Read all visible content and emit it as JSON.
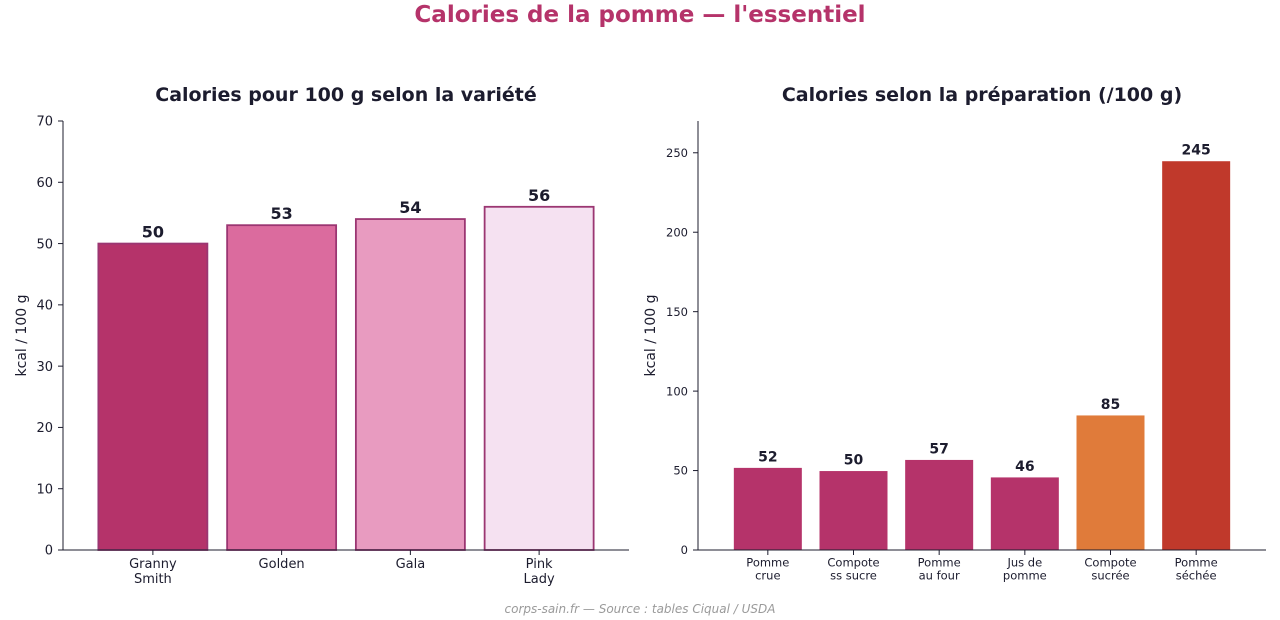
{
  "title": "Calories de la pomme — l'essentiel",
  "footer": "corps-sain.fr — Source : tables Ciqual / USDA",
  "chart_data": [
    {
      "type": "bar",
      "title": "Calories pour 100 g selon la variété",
      "ylabel": "kcal / 100 g",
      "xlabel": "",
      "ylim": [
        0,
        70
      ],
      "yticks": [
        0,
        10,
        20,
        30,
        40,
        50,
        60,
        70
      ],
      "categories": [
        [
          "Granny",
          "Smith"
        ],
        [
          "Golden"
        ],
        [
          "Gala"
        ],
        [
          "Pink",
          "Lady"
        ]
      ],
      "values": [
        50,
        53,
        54,
        56
      ],
      "colors": [
        "#b5336a",
        "#db6b9e",
        "#e89bc0",
        "#f5e1f1"
      ],
      "edge_color": "#9b3672",
      "grid": false
    },
    {
      "type": "bar",
      "title": "Calories selon la préparation (/100 g)",
      "ylabel": "kcal / 100 g",
      "xlabel": "",
      "ylim": [
        0,
        270
      ],
      "yticks": [
        0,
        50,
        100,
        150,
        200,
        250
      ],
      "categories": [
        [
          "Pomme",
          "crue"
        ],
        [
          "Compote",
          "ss sucre"
        ],
        [
          "Pomme",
          "au four"
        ],
        [
          "Jus de",
          "pomme"
        ],
        [
          "Compote",
          "sucrée"
        ],
        [
          "Pomme",
          "séchée"
        ]
      ],
      "values": [
        52,
        50,
        57,
        46,
        85,
        245
      ],
      "colors": [
        "#b5336a",
        "#b5336a",
        "#b5336a",
        "#b5336a",
        "#e07b3a",
        "#c0392b"
      ],
      "edge_color": "#ffffff",
      "grid": false
    }
  ]
}
